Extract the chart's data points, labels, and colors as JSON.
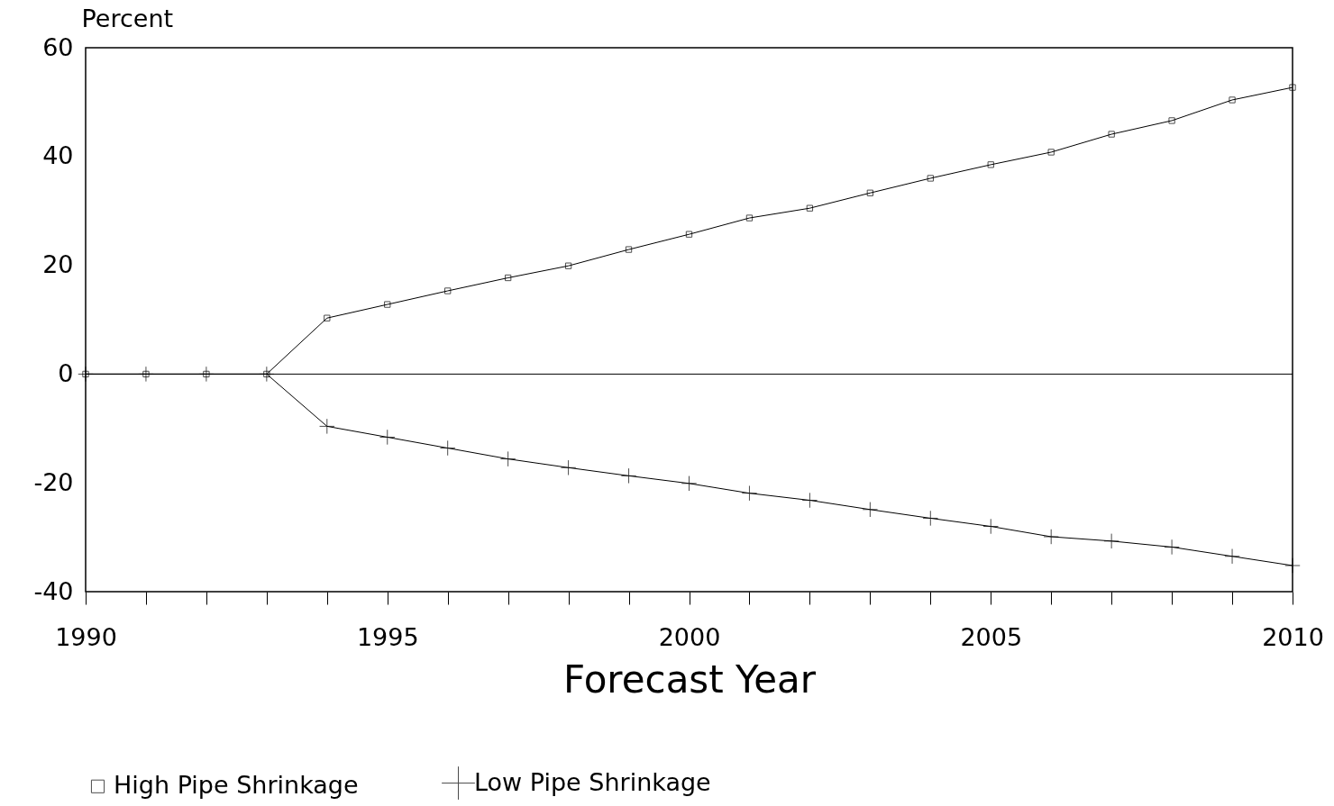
{
  "chart_data": {
    "type": "line",
    "xlabel": "Forecast Year",
    "ylabel": "Percent",
    "x": [
      1990,
      1991,
      1992,
      1993,
      1994,
      1995,
      1996,
      1997,
      1998,
      1999,
      2000,
      2001,
      2002,
      2003,
      2004,
      2005,
      2006,
      2007,
      2008,
      2009,
      2010
    ],
    "series": [
      {
        "name": "High Pipe Shrinkage",
        "color": "#000000",
        "marker": "square",
        "values": [
          0,
          0,
          0,
          0,
          10.3,
          12.8,
          15.3,
          17.7,
          19.9,
          22.9,
          25.7,
          28.7,
          30.5,
          33.3,
          36.0,
          38.5,
          40.8,
          44.1,
          46.6,
          50.4,
          52.7
        ]
      },
      {
        "name": "Low Pipe Shrinkage",
        "color": "#000000",
        "marker": "cross",
        "values": [
          0,
          0,
          0,
          0,
          -9.6,
          -11.6,
          -13.6,
          -15.6,
          -17.2,
          -18.7,
          -20.1,
          -21.9,
          -23.2,
          -24.9,
          -26.5,
          -28.0,
          -29.9,
          -30.7,
          -31.8,
          -33.5,
          -35.2
        ]
      }
    ],
    "xlim": [
      1990,
      2010
    ],
    "xticks": [
      1990,
      {
        "value": 1991,
        "label": null
      },
      {
        "value": 1992,
        "label": null
      },
      {
        "value": 1993,
        "label": null
      },
      {
        "value": 1994,
        "label": null
      },
      1995,
      {
        "value": 1996,
        "label": null
      },
      {
        "value": 1997,
        "label": null
      },
      {
        "value": 1998,
        "label": null
      },
      {
        "value": 1999,
        "label": null
      },
      2000,
      {
        "value": 2001,
        "label": null
      },
      {
        "value": 2002,
        "label": null
      },
      {
        "value": 2003,
        "label": null
      },
      {
        "value": 2004,
        "label": null
      },
      2005,
      {
        "value": 2006,
        "label": null
      },
      {
        "value": 2007,
        "label": null
      },
      {
        "value": 2008,
        "label": null
      },
      {
        "value": 2009,
        "label": null
      },
      2010
    ],
    "ylim": [
      -40,
      60
    ],
    "yticks": [
      -40,
      -20,
      0,
      20,
      40,
      60
    ],
    "ref_lines": [
      {
        "axis": "y",
        "value": 0,
        "color": "#000000"
      }
    ],
    "grid": false,
    "legend": "bottom",
    "line_style": "solid"
  }
}
